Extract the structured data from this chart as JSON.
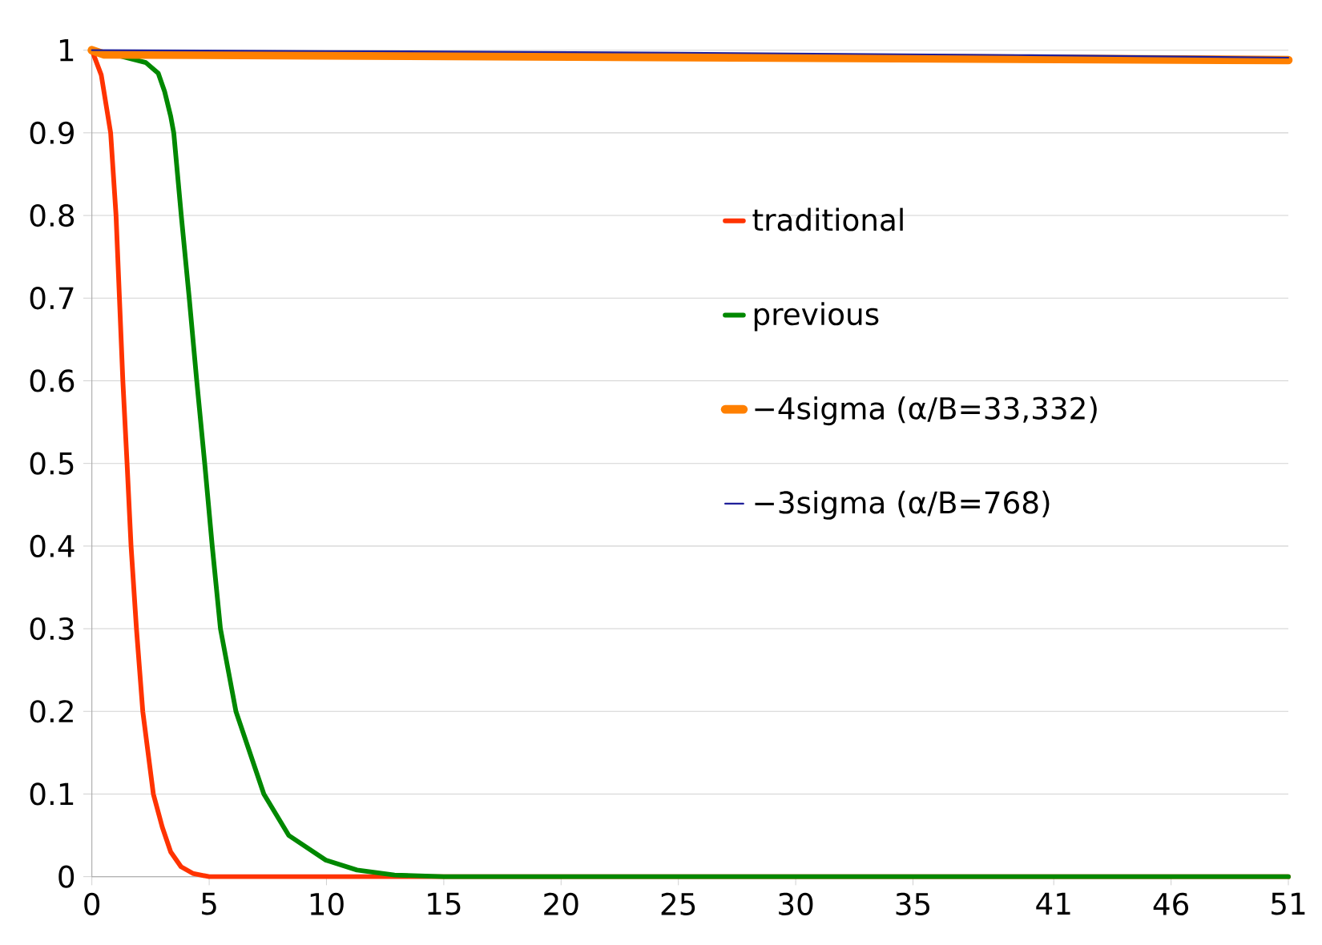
{
  "chart_data": {
    "type": "line",
    "xlim": [
      0,
      51
    ],
    "ylim": [
      0,
      1
    ],
    "xticks": [
      0,
      5,
      10,
      15,
      20,
      25,
      30,
      35,
      41,
      46,
      51
    ],
    "yticks": [
      0,
      0.1,
      0.2,
      0.3,
      0.4,
      0.5,
      0.6,
      0.7,
      0.8,
      0.9,
      1
    ],
    "grid": "y",
    "legend": "right",
    "line_style": "solid",
    "series": [
      {
        "name": "traditional",
        "color": "#ff3300",
        "x": [
          0,
          0.4,
          0.8,
          1.03,
          1.32,
          1.5,
          1.67,
          1.9,
          2.17,
          2.62,
          3.0,
          3.36,
          3.8,
          4.3,
          5,
          10,
          20,
          51
        ],
        "values": [
          1,
          0.97,
          0.9,
          0.8,
          0.6,
          0.5,
          0.4,
          0.3,
          0.2,
          0.1,
          0.06,
          0.03,
          0.012,
          0.004,
          0,
          0,
          0,
          0
        ]
      },
      {
        "name": "previous",
        "color": "#008800",
        "x": [
          0,
          1.2,
          2.3,
          2.83,
          3.1,
          3.36,
          3.49,
          3.81,
          4.15,
          4.47,
          4.81,
          5.13,
          5.48,
          6.14,
          7.33,
          8.39,
          9.97,
          11.3,
          12.9,
          15,
          30,
          51
        ],
        "values": [
          1,
          0.993,
          0.985,
          0.972,
          0.95,
          0.92,
          0.9,
          0.8,
          0.7,
          0.6,
          0.5,
          0.4,
          0.3,
          0.2,
          0.1,
          0.05,
          0.02,
          0.008,
          0.002,
          0,
          0,
          0
        ]
      },
      {
        "name": "−4sigma (α/B=33,332)",
        "color": "#ff8000",
        "x": [
          0,
          0.5,
          51
        ],
        "values": [
          1,
          0.995,
          0.988
        ]
      },
      {
        "name": "−3sigma (α/B=768)",
        "color": "#1f1f99",
        "x": [
          0,
          10,
          25,
          40,
          51
        ],
        "values": [
          1,
          0.999,
          0.997,
          0.994,
          0.991
        ]
      }
    ]
  }
}
